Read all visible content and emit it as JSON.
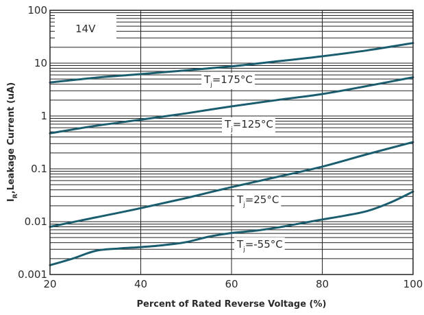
{
  "chart_data": {
    "type": "line",
    "title": "",
    "xlabel": "Percent of Rated Reverse Voltage (%)",
    "ylabel": "I_R, Leakage Current (uA)",
    "ylabel_main": "I",
    "ylabel_sub": "R",
    "ylabel_rest": ",Leakage Current (uA)",
    "note": "14V",
    "xlim": [
      20,
      100
    ],
    "ylim": [
      0.001,
      100
    ],
    "yscale": "log",
    "grid": true,
    "x_ticks": [
      20,
      40,
      60,
      80,
      100
    ],
    "x_tick_labels": [
      "20",
      "40",
      "60",
      "80",
      "100"
    ],
    "y_ticks": [
      0.001,
      0.01,
      0.1,
      1,
      10,
      100
    ],
    "y_tick_labels": [
      "0.001",
      "0.01",
      "0.1",
      "1",
      "10",
      "100"
    ],
    "line_color": "#1a5d6e",
    "series": [
      {
        "name": "Tj=175°C",
        "label_parts": [
          "T",
          "j",
          "=175°C"
        ],
        "x": [
          20,
          30,
          40,
          50,
          60,
          70,
          80,
          90,
          100
        ],
        "y": [
          4.3,
          5.3,
          6.2,
          7.3,
          8.7,
          10.8,
          13.5,
          17.5,
          24
        ]
      },
      {
        "name": "Tj=125°C",
        "label_parts": [
          "T",
          "j",
          "=125°C"
        ],
        "x": [
          20,
          30,
          40,
          50,
          60,
          70,
          80,
          90,
          100
        ],
        "y": [
          0.47,
          0.65,
          0.85,
          1.12,
          1.52,
          2.0,
          2.6,
          3.7,
          5.4
        ]
      },
      {
        "name": "Tj=25°C",
        "label_parts": [
          "T",
          "j",
          "=25°C"
        ],
        "x": [
          20,
          30,
          40,
          50,
          60,
          70,
          80,
          90,
          100
        ],
        "y": [
          0.008,
          0.012,
          0.018,
          0.028,
          0.045,
          0.07,
          0.11,
          0.19,
          0.32
        ]
      },
      {
        "name": "Tj=-55°C",
        "label_parts": [
          "T",
          "j",
          "=-55°C"
        ],
        "x": [
          20,
          25,
          30,
          35,
          40,
          45,
          50,
          55,
          60,
          65,
          70,
          75,
          80,
          85,
          90,
          95,
          100
        ],
        "y": [
          0.0015,
          0.002,
          0.0028,
          0.0031,
          0.0033,
          0.0036,
          0.0041,
          0.0052,
          0.0061,
          0.0067,
          0.0077,
          0.0092,
          0.011,
          0.013,
          0.016,
          0.023,
          0.037
        ]
      }
    ]
  }
}
